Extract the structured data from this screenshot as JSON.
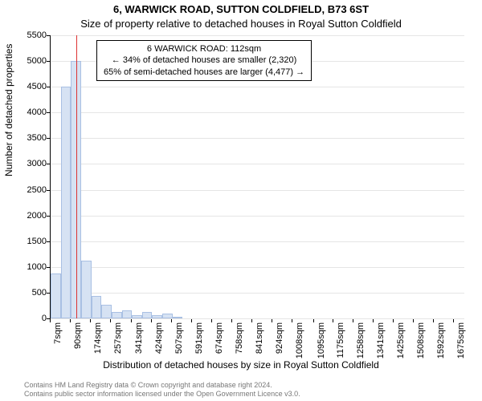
{
  "title_main": "6, WARWICK ROAD, SUTTON COLDFIELD, B73 6ST",
  "title_sub": "Size of property relative to detached houses in Royal Sutton Coldfield",
  "y_axis_title": "Number of detached properties",
  "x_axis_title": "Distribution of detached houses by size in Royal Sutton Coldfield",
  "annotation": {
    "line1": "6 WARWICK ROAD: 112sqm",
    "line2": "← 34% of detached houses are smaller (2,320)",
    "line3": "65% of semi-detached houses are larger (4,477) →"
  },
  "footer": {
    "line1": "Contains HM Land Registry data © Crown copyright and database right 2024.",
    "line2": "Contains public sector information licensed under the Open Government Licence v3.0."
  },
  "chart": {
    "type": "histogram",
    "background_color": "#ffffff",
    "grid_color": "#e5e5e5",
    "bar_fill": "#d6e2f3",
    "bar_stroke": "#a9c0e3",
    "refline_color": "#d33",
    "refline_x_sqm": 112,
    "ylim": [
      0,
      5500
    ],
    "ytick_step": 500,
    "yticks": [
      0,
      500,
      1000,
      1500,
      2000,
      2500,
      3000,
      3500,
      4000,
      4500,
      5000,
      5500
    ],
    "x_sqm_min": 7,
    "x_sqm_max": 1717,
    "xtick_labels": [
      "7sqm",
      "90sqm",
      "174sqm",
      "257sqm",
      "341sqm",
      "424sqm",
      "507sqm",
      "591sqm",
      "674sqm",
      "758sqm",
      "841sqm",
      "924sqm",
      "1008sqm",
      "1095sqm",
      "1175sqm",
      "1258sqm",
      "1341sqm",
      "1425sqm",
      "1508sqm",
      "1592sqm",
      "1675sqm"
    ],
    "xtick_sqm": [
      7,
      90,
      174,
      257,
      341,
      424,
      507,
      591,
      674,
      758,
      841,
      924,
      1008,
      1095,
      1175,
      1258,
      1341,
      1425,
      1508,
      1592,
      1675
    ],
    "bars": [
      {
        "x_sqm": 7,
        "w_sqm": 42,
        "v": 880
      },
      {
        "x_sqm": 49,
        "w_sqm": 42,
        "v": 4500
      },
      {
        "x_sqm": 91,
        "w_sqm": 42,
        "v": 5000
      },
      {
        "x_sqm": 133,
        "w_sqm": 42,
        "v": 1120
      },
      {
        "x_sqm": 175,
        "w_sqm": 42,
        "v": 440
      },
      {
        "x_sqm": 217,
        "w_sqm": 42,
        "v": 270
      },
      {
        "x_sqm": 259,
        "w_sqm": 42,
        "v": 130
      },
      {
        "x_sqm": 301,
        "w_sqm": 42,
        "v": 150
      },
      {
        "x_sqm": 343,
        "w_sqm": 42,
        "v": 70
      },
      {
        "x_sqm": 385,
        "w_sqm": 42,
        "v": 120
      },
      {
        "x_sqm": 427,
        "w_sqm": 42,
        "v": 60
      },
      {
        "x_sqm": 469,
        "w_sqm": 42,
        "v": 90
      },
      {
        "x_sqm": 511,
        "w_sqm": 42,
        "v": 30
      }
    ],
    "title_fontsize": 13,
    "label_fontsize": 12,
    "tick_fontsize": 11
  }
}
